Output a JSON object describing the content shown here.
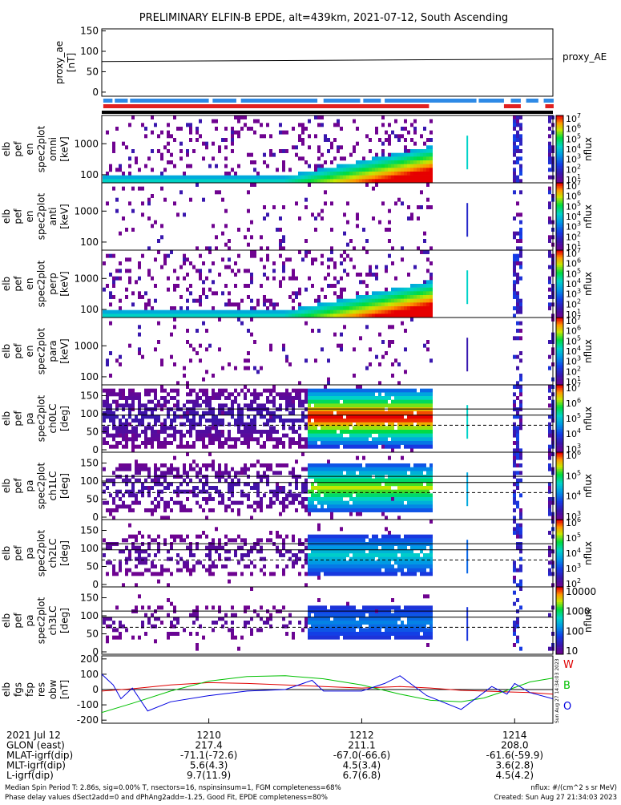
{
  "title": "PRELIMINARY ELFIN-B EPDE, alt=439km, 2021-07-12, South Ascending",
  "proxy_ae": {
    "ylabel": [
      "proxy_ae",
      "[nT]"
    ],
    "yticks": [
      "150",
      "100",
      "50",
      "0"
    ],
    "legend": "proxy_AE",
    "ylim": [
      -10,
      155
    ],
    "value_start": 75,
    "value_end": 81
  },
  "fgm_status": {
    "blue_segments": [
      [
        1208.62,
        1208.74
      ],
      [
        1208.77,
        1208.94
      ],
      [
        1208.97,
        1210.0
      ],
      [
        1210.05,
        1210.36
      ],
      [
        1210.42,
        1211.42
      ],
      [
        1211.5,
        1211.98
      ],
      [
        1212.02,
        1212.25
      ],
      [
        1212.3,
        1213.5
      ],
      [
        1213.53,
        1213.86
      ],
      [
        1213.95,
        1214.08
      ],
      [
        1214.15,
        1214.31
      ],
      [
        1214.38,
        1214.51
      ]
    ],
    "red_segments": [
      [
        1208.62,
        1212.88
      ],
      [
        1213.86,
        1214.08
      ],
      [
        1214.4,
        1214.51
      ]
    ]
  },
  "spec_panels": [
    {
      "label": [
        "elb",
        "pef",
        "en",
        "spec2plot",
        "omni",
        "[keV]"
      ],
      "kind": "energy",
      "yticks": [
        "1000",
        "100"
      ],
      "colorbar": {
        "exp_min": 1,
        "exp_max": 7,
        "label": "nflux"
      },
      "intensity": 1.0
    },
    {
      "label": [
        "elb",
        "pef",
        "en",
        "spec2plot",
        "anti",
        "[keV]"
      ],
      "kind": "energy",
      "yticks": [
        "1000",
        "100"
      ],
      "colorbar": {
        "exp_min": 1,
        "exp_max": 7,
        "label": "nflux"
      },
      "intensity": 0.25
    },
    {
      "label": [
        "elb",
        "pef",
        "en",
        "spec2plot",
        "perp",
        "[keV]"
      ],
      "kind": "energy",
      "yticks": [
        "1000",
        "100"
      ],
      "colorbar": {
        "exp_min": 1,
        "exp_max": 7,
        "label": "nflux"
      },
      "intensity": 1.0
    },
    {
      "label": [
        "elb",
        "pef",
        "en",
        "spec2plot",
        "para",
        "[keV]"
      ],
      "kind": "energy",
      "yticks": [
        "1000",
        "100"
      ],
      "colorbar": {
        "exp_min": 1,
        "exp_max": 7,
        "label": "nflux"
      },
      "intensity": 0.12
    },
    {
      "label": [
        "elb",
        "pef",
        "pa",
        "spec2plot",
        "ch0LC",
        "[deg]"
      ],
      "kind": "pa",
      "yticks": [
        "150",
        "100",
        "50",
        "0"
      ],
      "colorbar": {
        "exp_min": 3,
        "exp_max": 7,
        "label": "nflux"
      },
      "intensity": 1.0
    },
    {
      "label": [
        "elb",
        "pef",
        "pa",
        "spec2plot",
        "ch1LC",
        "[deg]"
      ],
      "kind": "pa",
      "yticks": [
        "150",
        "100",
        "50",
        "0"
      ],
      "colorbar": {
        "exp_min": 3,
        "exp_max": 6,
        "label": "nflux"
      },
      "intensity": 0.8
    },
    {
      "label": [
        "elb",
        "pef",
        "pa",
        "spec2plot",
        "ch2LC",
        "[deg]"
      ],
      "kind": "pa",
      "yticks": [
        "150",
        "100",
        "50",
        "0"
      ],
      "colorbar": {
        "exp_min": 2,
        "exp_max": 6,
        "label": "nflux"
      },
      "intensity": 0.55
    },
    {
      "label": [
        "elb",
        "pef",
        "pa",
        "spec2plot",
        "ch3LC",
        "[deg]"
      ],
      "kind": "pa",
      "yticks": [
        "150",
        "100",
        "50",
        "0"
      ],
      "colorbar": {
        "ticks": [
          "10000",
          "1000",
          "100",
          "10"
        ],
        "label": "nflux"
      },
      "intensity": 0.35
    }
  ],
  "chart_data": {
    "type": "line",
    "ylabel": [
      "elb",
      "fgs",
      "fsp",
      "res",
      "obw",
      "[nT]"
    ],
    "yticks": [
      "200",
      "100",
      "0",
      "-100",
      "-200"
    ],
    "ylim": [
      -220,
      220
    ],
    "series": [
      {
        "name": "W",
        "color": "#e00000",
        "x": [
          1208.6,
          1209.0,
          1209.5,
          1210.0,
          1210.5,
          1211.0,
          1211.5,
          1212.0,
          1212.5,
          1212.9,
          1213.3,
          1213.6,
          1213.9,
          1214.2,
          1214.5
        ],
        "y": [
          -10,
          5,
          30,
          45,
          40,
          30,
          20,
          10,
          20,
          10,
          -5,
          -10,
          -15,
          -20,
          -30
        ]
      },
      {
        "name": "B",
        "color": "#00c000",
        "x": [
          1208.6,
          1209.0,
          1209.5,
          1210.0,
          1210.5,
          1211.0,
          1211.5,
          1212.0,
          1212.5,
          1212.9,
          1213.3,
          1213.6,
          1213.9,
          1214.2,
          1214.5
        ],
        "y": [
          -150,
          -90,
          -10,
          55,
          85,
          90,
          70,
          30,
          -30,
          -70,
          -80,
          -55,
          -5,
          50,
          75
        ]
      },
      {
        "name": "O",
        "color": "#0000e0",
        "x": [
          1208.6,
          1208.75,
          1208.85,
          1209.0,
          1209.2,
          1209.5,
          1210.0,
          1210.5,
          1211.0,
          1211.35,
          1211.5,
          1212.0,
          1212.3,
          1212.5,
          1212.85,
          1213.3,
          1213.7,
          1213.9,
          1214.0,
          1214.2,
          1214.5
        ],
        "y": [
          100,
          30,
          -60,
          10,
          -140,
          -80,
          -40,
          -10,
          0,
          60,
          -10,
          -10,
          40,
          90,
          -40,
          -130,
          20,
          -30,
          40,
          -20,
          -60
        ]
      }
    ],
    "xticks": [
      "1210",
      "1212",
      "1214"
    ],
    "xlim": [
      1208.6,
      1214.5
    ]
  },
  "ephemeris": {
    "rows": [
      {
        "label": "2021 Jul 12",
        "values": [
          "1210",
          "1212",
          "1214"
        ]
      },
      {
        "label": "GLON (east)",
        "values": [
          "217.4",
          "211.1",
          "208.0"
        ]
      },
      {
        "label": "MLAT-igrf(dip)",
        "values": [
          "-71.1(-72.6)",
          "-67.0(-66.6)",
          "-61.6(-59.9)"
        ]
      },
      {
        "label": "MLT-igrf(dip)",
        "values": [
          "5.6(4.3)",
          "4.5(3.4)",
          "3.6(2.8)"
        ]
      },
      {
        "label": "L-igrf(dip)",
        "values": [
          "9.7(11.9)",
          "6.7(6.8)",
          "4.5(4.2)"
        ]
      }
    ]
  },
  "footer": {
    "line1": "Median Spin Period T: 2.86s, sig=0.00% T, nsectors=16, nspinsinsum=1, FGM completeness=68%",
    "line2": "Phase delay values dSect2add=0 and dPhAng2add=-1.25, Good Fit, EPDE completeness=80%",
    "units": "nflux: #/(cm^2 s sr MeV)",
    "created": "Created: Sun Aug 27 21:34:03 2023",
    "side_stamp": "Sun Aug 27 14:34:03 2023"
  }
}
